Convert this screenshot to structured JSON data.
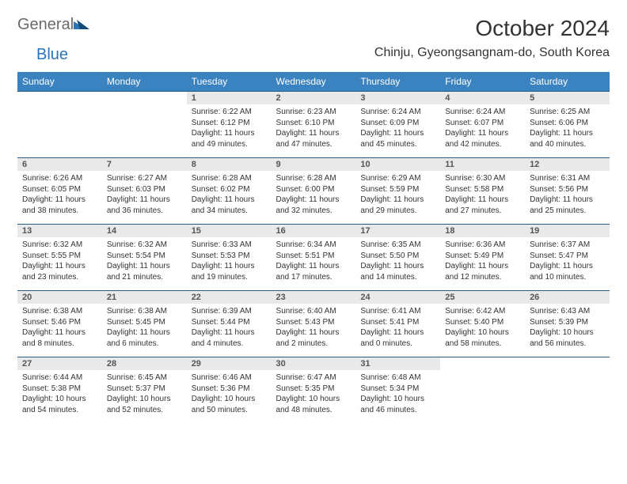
{
  "logo": {
    "part1": "General",
    "part2": "Blue",
    "general_color": "#6a6a6a",
    "blue_color": "#2a74b8"
  },
  "title": "October 2024",
  "location": "Chinju, Gyeongsangnam-do, South Korea",
  "colors": {
    "header_bg": "#3b83c0",
    "header_text": "#ffffff",
    "daynum_bg": "#e9e9e9",
    "row_divider": "#2a5d85",
    "text": "#333333",
    "page_bg": "#ffffff"
  },
  "fonts": {
    "title_size": 28,
    "location_size": 16,
    "weekday_size": 12,
    "daynum_size": 11,
    "body_size": 10
  },
  "weekdays": [
    "Sunday",
    "Monday",
    "Tuesday",
    "Wednesday",
    "Thursday",
    "Friday",
    "Saturday"
  ],
  "weeks": [
    {
      "nums": [
        "",
        "",
        "1",
        "2",
        "3",
        "4",
        "5"
      ],
      "cells": [
        null,
        null,
        {
          "sunrise": "Sunrise: 6:22 AM",
          "sunset": "Sunset: 6:12 PM",
          "day1": "Daylight: 11 hours",
          "day2": "and 49 minutes."
        },
        {
          "sunrise": "Sunrise: 6:23 AM",
          "sunset": "Sunset: 6:10 PM",
          "day1": "Daylight: 11 hours",
          "day2": "and 47 minutes."
        },
        {
          "sunrise": "Sunrise: 6:24 AM",
          "sunset": "Sunset: 6:09 PM",
          "day1": "Daylight: 11 hours",
          "day2": "and 45 minutes."
        },
        {
          "sunrise": "Sunrise: 6:24 AM",
          "sunset": "Sunset: 6:07 PM",
          "day1": "Daylight: 11 hours",
          "day2": "and 42 minutes."
        },
        {
          "sunrise": "Sunrise: 6:25 AM",
          "sunset": "Sunset: 6:06 PM",
          "day1": "Daylight: 11 hours",
          "day2": "and 40 minutes."
        }
      ]
    },
    {
      "nums": [
        "6",
        "7",
        "8",
        "9",
        "10",
        "11",
        "12"
      ],
      "cells": [
        {
          "sunrise": "Sunrise: 6:26 AM",
          "sunset": "Sunset: 6:05 PM",
          "day1": "Daylight: 11 hours",
          "day2": "and 38 minutes."
        },
        {
          "sunrise": "Sunrise: 6:27 AM",
          "sunset": "Sunset: 6:03 PM",
          "day1": "Daylight: 11 hours",
          "day2": "and 36 minutes."
        },
        {
          "sunrise": "Sunrise: 6:28 AM",
          "sunset": "Sunset: 6:02 PM",
          "day1": "Daylight: 11 hours",
          "day2": "and 34 minutes."
        },
        {
          "sunrise": "Sunrise: 6:28 AM",
          "sunset": "Sunset: 6:00 PM",
          "day1": "Daylight: 11 hours",
          "day2": "and 32 minutes."
        },
        {
          "sunrise": "Sunrise: 6:29 AM",
          "sunset": "Sunset: 5:59 PM",
          "day1": "Daylight: 11 hours",
          "day2": "and 29 minutes."
        },
        {
          "sunrise": "Sunrise: 6:30 AM",
          "sunset": "Sunset: 5:58 PM",
          "day1": "Daylight: 11 hours",
          "day2": "and 27 minutes."
        },
        {
          "sunrise": "Sunrise: 6:31 AM",
          "sunset": "Sunset: 5:56 PM",
          "day1": "Daylight: 11 hours",
          "day2": "and 25 minutes."
        }
      ]
    },
    {
      "nums": [
        "13",
        "14",
        "15",
        "16",
        "17",
        "18",
        "19"
      ],
      "cells": [
        {
          "sunrise": "Sunrise: 6:32 AM",
          "sunset": "Sunset: 5:55 PM",
          "day1": "Daylight: 11 hours",
          "day2": "and 23 minutes."
        },
        {
          "sunrise": "Sunrise: 6:32 AM",
          "sunset": "Sunset: 5:54 PM",
          "day1": "Daylight: 11 hours",
          "day2": "and 21 minutes."
        },
        {
          "sunrise": "Sunrise: 6:33 AM",
          "sunset": "Sunset: 5:53 PM",
          "day1": "Daylight: 11 hours",
          "day2": "and 19 minutes."
        },
        {
          "sunrise": "Sunrise: 6:34 AM",
          "sunset": "Sunset: 5:51 PM",
          "day1": "Daylight: 11 hours",
          "day2": "and 17 minutes."
        },
        {
          "sunrise": "Sunrise: 6:35 AM",
          "sunset": "Sunset: 5:50 PM",
          "day1": "Daylight: 11 hours",
          "day2": "and 14 minutes."
        },
        {
          "sunrise": "Sunrise: 6:36 AM",
          "sunset": "Sunset: 5:49 PM",
          "day1": "Daylight: 11 hours",
          "day2": "and 12 minutes."
        },
        {
          "sunrise": "Sunrise: 6:37 AM",
          "sunset": "Sunset: 5:47 PM",
          "day1": "Daylight: 11 hours",
          "day2": "and 10 minutes."
        }
      ]
    },
    {
      "nums": [
        "20",
        "21",
        "22",
        "23",
        "24",
        "25",
        "26"
      ],
      "cells": [
        {
          "sunrise": "Sunrise: 6:38 AM",
          "sunset": "Sunset: 5:46 PM",
          "day1": "Daylight: 11 hours",
          "day2": "and 8 minutes."
        },
        {
          "sunrise": "Sunrise: 6:38 AM",
          "sunset": "Sunset: 5:45 PM",
          "day1": "Daylight: 11 hours",
          "day2": "and 6 minutes."
        },
        {
          "sunrise": "Sunrise: 6:39 AM",
          "sunset": "Sunset: 5:44 PM",
          "day1": "Daylight: 11 hours",
          "day2": "and 4 minutes."
        },
        {
          "sunrise": "Sunrise: 6:40 AM",
          "sunset": "Sunset: 5:43 PM",
          "day1": "Daylight: 11 hours",
          "day2": "and 2 minutes."
        },
        {
          "sunrise": "Sunrise: 6:41 AM",
          "sunset": "Sunset: 5:41 PM",
          "day1": "Daylight: 11 hours",
          "day2": "and 0 minutes."
        },
        {
          "sunrise": "Sunrise: 6:42 AM",
          "sunset": "Sunset: 5:40 PM",
          "day1": "Daylight: 10 hours",
          "day2": "and 58 minutes."
        },
        {
          "sunrise": "Sunrise: 6:43 AM",
          "sunset": "Sunset: 5:39 PM",
          "day1": "Daylight: 10 hours",
          "day2": "and 56 minutes."
        }
      ]
    },
    {
      "nums": [
        "27",
        "28",
        "29",
        "30",
        "31",
        "",
        ""
      ],
      "cells": [
        {
          "sunrise": "Sunrise: 6:44 AM",
          "sunset": "Sunset: 5:38 PM",
          "day1": "Daylight: 10 hours",
          "day2": "and 54 minutes."
        },
        {
          "sunrise": "Sunrise: 6:45 AM",
          "sunset": "Sunset: 5:37 PM",
          "day1": "Daylight: 10 hours",
          "day2": "and 52 minutes."
        },
        {
          "sunrise": "Sunrise: 6:46 AM",
          "sunset": "Sunset: 5:36 PM",
          "day1": "Daylight: 10 hours",
          "day2": "and 50 minutes."
        },
        {
          "sunrise": "Sunrise: 6:47 AM",
          "sunset": "Sunset: 5:35 PM",
          "day1": "Daylight: 10 hours",
          "day2": "and 48 minutes."
        },
        {
          "sunrise": "Sunrise: 6:48 AM",
          "sunset": "Sunset: 5:34 PM",
          "day1": "Daylight: 10 hours",
          "day2": "and 46 minutes."
        },
        null,
        null
      ]
    }
  ]
}
